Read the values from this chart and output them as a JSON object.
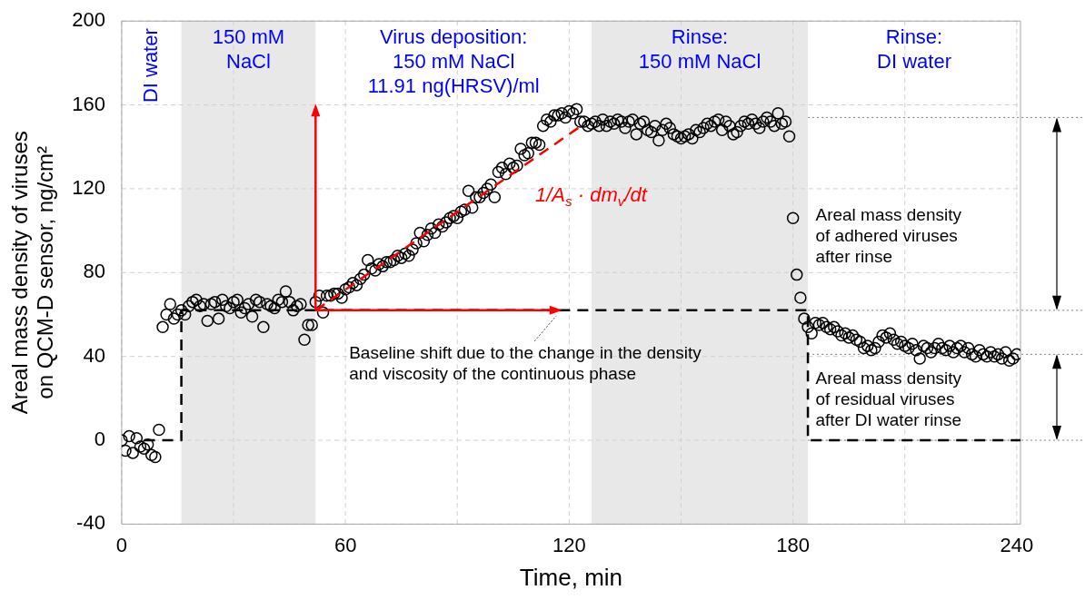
{
  "chart_data": {
    "type": "scatter",
    "xlabel": "Time, min",
    "ylabel": "Areal mass density of viruses\non QCM-D sensor, ng/cm²",
    "xlim": [
      0,
      241
    ],
    "xticks": [
      0,
      {
        "value": 30,
        "label": null
      },
      60,
      {
        "value": 90,
        "label": null
      },
      120,
      {
        "value": 150,
        "label": null
      },
      180,
      {
        "value": 210,
        "label": null
      },
      240
    ],
    "ylim": [
      -40,
      200
    ],
    "yticks": [
      -40,
      0,
      40,
      80,
      120,
      160,
      200
    ],
    "grid": true,
    "legend": false,
    "marker": "circle",
    "bands": [
      {
        "axis": "x",
        "from": 16,
        "to": 52,
        "label": "150 mM\nNaCl",
        "color": "#e8e8e8"
      },
      {
        "axis": "x",
        "from": 126,
        "to": 184,
        "label": "Rinse:\n150 mM NaCl",
        "color": "#e8e8e8"
      }
    ],
    "ref_lines": [
      {
        "axis": "y",
        "value": 154,
        "line_style": "dotted",
        "color": "#808080"
      },
      {
        "axis": "y",
        "value": 62,
        "line_style": "dotted",
        "color": "#808080"
      },
      {
        "axis": "y",
        "value": 41,
        "line_style": "dotted",
        "color": "#808080"
      },
      {
        "axis": "y",
        "value": 0,
        "line_style": "dotted",
        "color": "#808080"
      }
    ],
    "annotations": [
      "DI water",
      "Virus deposition:\n150 mM NaCl\n11.91 ng(HRSV)/ml",
      "Rinse:\nDI water",
      {
        "text": "Baseline shift due to the change in the density\nand viscosity of the continuous phase",
        "x": 118,
        "y": 62
      },
      "Areal mass density\nof adhered viruses\nafter rinse",
      "Areal mass density\nof residual viruses\nafter DI water rinse"
    ],
    "series": [
      {
        "type": "line",
        "color": "#000000",
        "line_style": "dashed",
        "marker": "none",
        "x": [
          6,
          16,
          16,
          184,
          184,
          241
        ],
        "values": [
          0,
          0,
          62,
          62,
          0,
          0
        ]
      },
      {
        "type": "line",
        "name": "1/A$_{s}$ · dm$_{v}$/dt",
        "color": "#ff0000",
        "line_style": "dashed",
        "marker": "none",
        "x": [
          52,
          124
        ],
        "values": [
          62,
          151
        ]
      },
      {
        "color": "#000000",
        "x": [
          0,
          1,
          2,
          3,
          4,
          5,
          6,
          7,
          8,
          9,
          10,
          11,
          12,
          13,
          14,
          15,
          16,
          17,
          18,
          19,
          20,
          21,
          22,
          23,
          24,
          25,
          26,
          27,
          28,
          29,
          30,
          31,
          32,
          33,
          34,
          35,
          36,
          37,
          38,
          39,
          40,
          41,
          42,
          43,
          44,
          45,
          46,
          47,
          48,
          49,
          50,
          51,
          52,
          53,
          54,
          55,
          56,
          57,
          58,
          59,
          60,
          61,
          62,
          63,
          64,
          65,
          66,
          67,
          68,
          69,
          70,
          71,
          72,
          73,
          74,
          75,
          76,
          77,
          78,
          79,
          80,
          81,
          82,
          83,
          84,
          85,
          86,
          87,
          88,
          89,
          90,
          91,
          92,
          93,
          94,
          95,
          96,
          97,
          98,
          99,
          100,
          101,
          102,
          103,
          104,
          105,
          106,
          107,
          108,
          109,
          110,
          111,
          112,
          113,
          114,
          115,
          116,
          117,
          118,
          119,
          120,
          121,
          122,
          123,
          124,
          125,
          126,
          127,
          128,
          129,
          130,
          131,
          132,
          133,
          134,
          135,
          136,
          137,
          138,
          139,
          140,
          141,
          142,
          143,
          144,
          145,
          146,
          147,
          148,
          149,
          150,
          151,
          152,
          153,
          154,
          155,
          156,
          157,
          158,
          159,
          160,
          161,
          162,
          163,
          164,
          165,
          166,
          167,
          168,
          169,
          170,
          171,
          172,
          173,
          174,
          175,
          176,
          177,
          178,
          179,
          180,
          181,
          182,
          183,
          184,
          185,
          186,
          187,
          188,
          189,
          190,
          191,
          192,
          193,
          194,
          195,
          196,
          197,
          198,
          199,
          200,
          201,
          202,
          203,
          204,
          205,
          206,
          207,
          208,
          209,
          210,
          211,
          212,
          213,
          214,
          215,
          216,
          217,
          218,
          219,
          220,
          221,
          222,
          223,
          224,
          225,
          226,
          227,
          228,
          229,
          230,
          231,
          232,
          233,
          234,
          235,
          236,
          237,
          238,
          239,
          240
        ],
        "values": [
          0,
          -5,
          2,
          -6,
          1,
          -3,
          -4,
          -2,
          -7,
          -8,
          5,
          54,
          60,
          65,
          58,
          60,
          62,
          60,
          64,
          66,
          67,
          64,
          65,
          57,
          65,
          66,
          58,
          67,
          64,
          63,
          66,
          67,
          61,
          63,
          65,
          59,
          67,
          66,
          54,
          65,
          64,
          63,
          67,
          66,
          71,
          66,
          62,
          64,
          65,
          48,
          55,
          55,
          66,
          69,
          61,
          69,
          69,
          70,
          70,
          68,
          72,
          73,
          75,
          74,
          77,
          79,
          86,
          82,
          81,
          84,
          83,
          85,
          85,
          86,
          88,
          87,
          89,
          88,
          91,
          94,
          99,
          95,
          98,
          101,
          99,
          103,
          102,
          104,
          106,
          107,
          106,
          109,
          110,
          119,
          111,
          116,
          116,
          118,
          120,
          122,
          116,
          128,
          130,
          127,
          132,
          130,
          131,
          139,
          136,
          137,
          142,
          142,
          141,
          150,
          153,
          152,
          155,
          155,
          156,
          154,
          157,
          156,
          158,
          152,
          152,
          150,
          151,
          152,
          150,
          153,
          150,
          152,
          151,
          153,
          152,
          149,
          152,
          153,
          146,
          151,
          152,
          148,
          147,
          150,
          143,
          148,
          151,
          149,
          146,
          145,
          144,
          145,
          146,
          144,
          148,
          147,
          149,
          151,
          150,
          152,
          153,
          148,
          152,
          150,
          146,
          147,
          150,
          152,
          151,
          153,
          151,
          149,
          152,
          154,
          152,
          150,
          156,
          151,
          152,
          145,
          106,
          79,
          68,
          58,
          54,
          51,
          56,
          55,
          56,
          54,
          53,
          54,
          52,
          50,
          51,
          49,
          50,
          48,
          47,
          44,
          45,
          43,
          44,
          47,
          50,
          49,
          51,
          48,
          46,
          47,
          45,
          44,
          46,
          43,
          39,
          45,
          44,
          42,
          44,
          46,
          44,
          43,
          45,
          42,
          44,
          45,
          42,
          44,
          41,
          40,
          43,
          41,
          40,
          42,
          40,
          41,
          39,
          42,
          38,
          39,
          41
        ]
      }
    ]
  }
}
